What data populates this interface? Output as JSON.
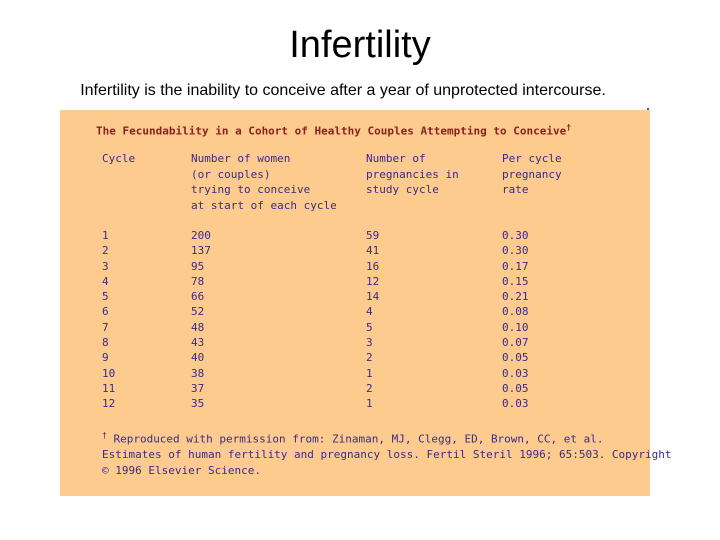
{
  "slide": {
    "title": "Infertility",
    "subtitle": "Infertility is the inability to conceive after a year of unprotected intercourse."
  },
  "table": {
    "heading": "The Fecundability in a Cohort of Healthy Couples Attempting to Conceive",
    "heading_mark": "†",
    "columns": [
      {
        "label": "Cycle"
      },
      {
        "label": "Number of women\n(or couples)\ntrying to conceive\nat start of each cycle"
      },
      {
        "label": "Number of\npregnancies in\nstudy cycle"
      },
      {
        "label": "Per cycle\npregnancy\nrate"
      }
    ],
    "cycles": [
      "1",
      "2",
      "3",
      "4",
      "5",
      "6",
      "7",
      "8",
      "9",
      "10",
      "11",
      "12"
    ],
    "women": [
      "200",
      "137",
      "95",
      "78",
      "66",
      "52",
      "48",
      "43",
      "40",
      "38",
      "37",
      "35"
    ],
    "pregnancies": [
      "59",
      "41",
      "16",
      "12",
      "14",
      "4",
      "5",
      "3",
      "2",
      "1",
      "2",
      "1"
    ],
    "rates": [
      "0.30",
      "0.30",
      "0.17",
      "0.15",
      "0.21",
      "0.08",
      "0.10",
      "0.07",
      "0.05",
      "0.03",
      "0.05",
      "0.03"
    ],
    "footnote": {
      "mark": "†",
      "line1": "Reproduced with permission from: Zinaman, MJ, Clegg, ED, Brown, CC, et al.",
      "line2": "Estimates of human fertility and pregnancy loss. Fertil Steril 1996; 65:503. Copyright",
      "line3": "© 1996 Elsevier Science."
    }
  },
  "colors": {
    "table_background": "#fdcb8e",
    "table_text": "#3a2a8a",
    "heading_text": "#8a2020"
  }
}
